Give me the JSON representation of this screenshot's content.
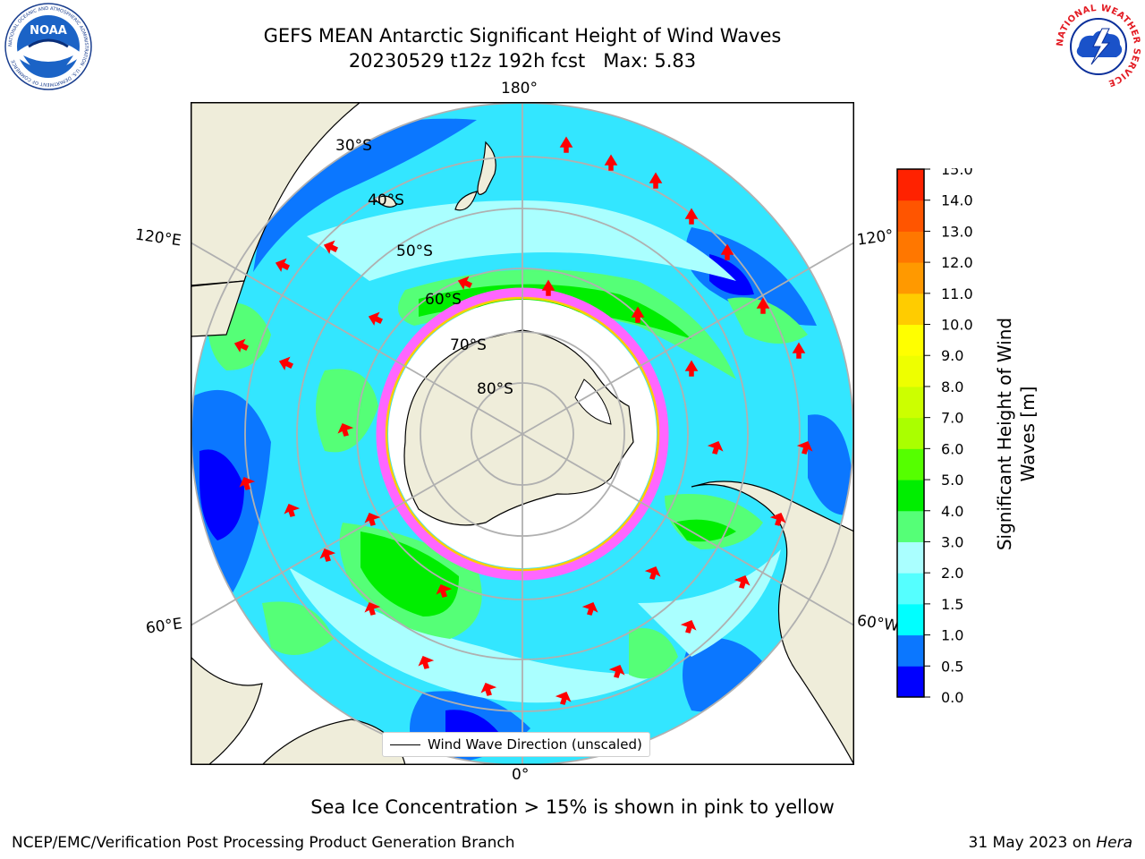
{
  "header": {
    "title_line1": "GEFS MEAN Antarctic Significant Height of Wind Waves",
    "title_line2": "20230529 t12z 192h fcst   Max: 5.83"
  },
  "logos": {
    "left": {
      "name": "noaa-logo",
      "text": "NOAA",
      "ring_text": "NATIONAL OCEANIC AND ATMOSPHERIC ADMINISTRATION · U.S. DEPARTMENT OF COMMERCE"
    },
    "right": {
      "name": "nws-logo",
      "ring_text": "NATIONAL WEATHER SERVICE"
    }
  },
  "map": {
    "projection": "south-polar-stereographic",
    "longitude_labels": {
      "top": "180°",
      "bottom": "0°",
      "upper_left": "120°E",
      "lower_left": "60°E",
      "upper_right": "120°",
      "lower_right": "60°W"
    },
    "latitude_labels": [
      "30°S",
      "40°S",
      "50°S",
      "60°S",
      "70°S",
      "80°S"
    ],
    "legend_label": "Wind Wave Direction (unscaled)",
    "colors": {
      "land": "#efedda",
      "ice_edge": "#ff33ff",
      "arrow": "#ff0000",
      "grid": "#b0b0b0"
    }
  },
  "colorbar": {
    "title": "Significant Height of Wind Waves [m]",
    "title_line1": "Significant Height of Wind",
    "title_line2": "Waves [m]",
    "ticks": [
      "0.0",
      "0.5",
      "1.0",
      "1.5",
      "2.0",
      "3.0",
      "4.0",
      "5.0",
      "6.0",
      "7.0",
      "8.0",
      "9.0",
      "10.0",
      "11.0",
      "12.0",
      "13.0",
      "14.0",
      "15.0"
    ],
    "colors": [
      "#0000ff",
      "#0b77ff",
      "#00ffff",
      "#55ffff",
      "#aaffff",
      "#55ff77",
      "#00ee00",
      "#55ff00",
      "#aaff00",
      "#ccff00",
      "#eeff00",
      "#ffff00",
      "#ffcc00",
      "#ff9900",
      "#ff7700",
      "#ff5500",
      "#ff2200"
    ]
  },
  "caption": "Sea Ice Concentration > 15% is shown in pink to yellow",
  "footer": {
    "left": "NCEP/EMC/Verification Post Processing Product Generation Branch",
    "right_prefix": "31 May 2023 on ",
    "right_host": "Hera"
  }
}
